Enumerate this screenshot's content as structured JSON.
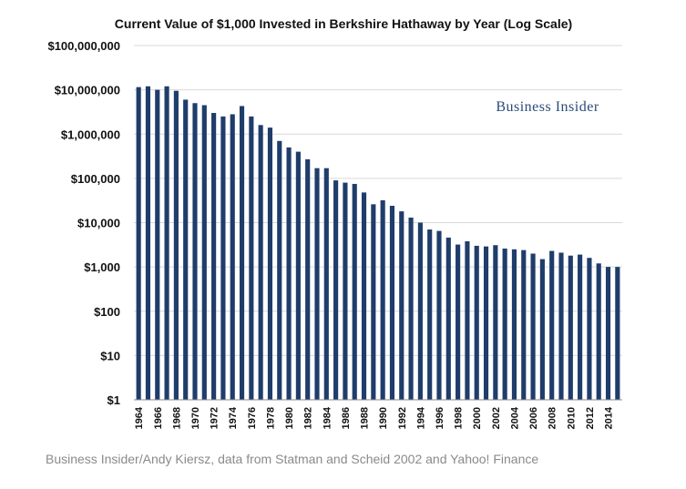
{
  "colors": {
    "bar": "#1f3d6b",
    "grid": "#d9d9d9",
    "axis": "#888888",
    "watermark": "#2b4a78",
    "credit": "#8a8a8a"
  },
  "watermark": "Business Insider",
  "credit": "Business Insider/Andy Kiersz, data from Statman and Scheid 2002 and Yahoo! Finance",
  "chart_data": {
    "type": "bar",
    "title": "Current Value of $1,000 Invested in Berkshire Hathaway by Year (Log Scale)",
    "xlabel": "",
    "ylabel": "",
    "y_scale": "log",
    "ylim": [
      1,
      100000000
    ],
    "grid": true,
    "y_ticks": [
      {
        "value": 1,
        "label": "$1"
      },
      {
        "value": 10,
        "label": "$10"
      },
      {
        "value": 100,
        "label": "$100"
      },
      {
        "value": 1000,
        "label": "$1,000"
      },
      {
        "value": 10000,
        "label": "$10,000"
      },
      {
        "value": 100000,
        "label": "$100,000"
      },
      {
        "value": 1000000,
        "label": "$1,000,000"
      },
      {
        "value": 10000000,
        "label": "$10,000,000"
      },
      {
        "value": 100000000,
        "label": "$100,000,000"
      }
    ],
    "x_tick_labels": [
      "1964",
      "1966",
      "1968",
      "1970",
      "1972",
      "1974",
      "1976",
      "1978",
      "1980",
      "1982",
      "1984",
      "1986",
      "1988",
      "1990",
      "1992",
      "1994",
      "1996",
      "1998",
      "2000",
      "2002",
      "2004",
      "2006",
      "2008",
      "2010",
      "2012",
      "2014"
    ],
    "categories": [
      "1964",
      "1965",
      "1966",
      "1967",
      "1968",
      "1969",
      "1970",
      "1971",
      "1972",
      "1973",
      "1974",
      "1975",
      "1976",
      "1977",
      "1978",
      "1979",
      "1980",
      "1981",
      "1982",
      "1983",
      "1984",
      "1985",
      "1986",
      "1987",
      "1988",
      "1989",
      "1990",
      "1991",
      "1992",
      "1993",
      "1994",
      "1995",
      "1996",
      "1997",
      "1998",
      "1999",
      "2000",
      "2001",
      "2002",
      "2003",
      "2004",
      "2005",
      "2006",
      "2007",
      "2008",
      "2009",
      "2010",
      "2011",
      "2012",
      "2013",
      "2014",
      "2015"
    ],
    "values": [
      11500000,
      12000000,
      10000000,
      12000000,
      9500000,
      6000000,
      5000000,
      4500000,
      3000000,
      2500000,
      2800000,
      4300000,
      2500000,
      1600000,
      1400000,
      700000,
      500000,
      400000,
      270000,
      170000,
      170000,
      90000,
      80000,
      75000,
      48000,
      26000,
      32000,
      24000,
      18000,
      13000,
      10000,
      7000,
      6500,
      4600,
      3200,
      3800,
      3000,
      2900,
      3100,
      2600,
      2500,
      2400,
      2000,
      1500,
      2300,
      2100,
      1800,
      1900,
      1600,
      1200,
      1000,
      1000
    ]
  }
}
